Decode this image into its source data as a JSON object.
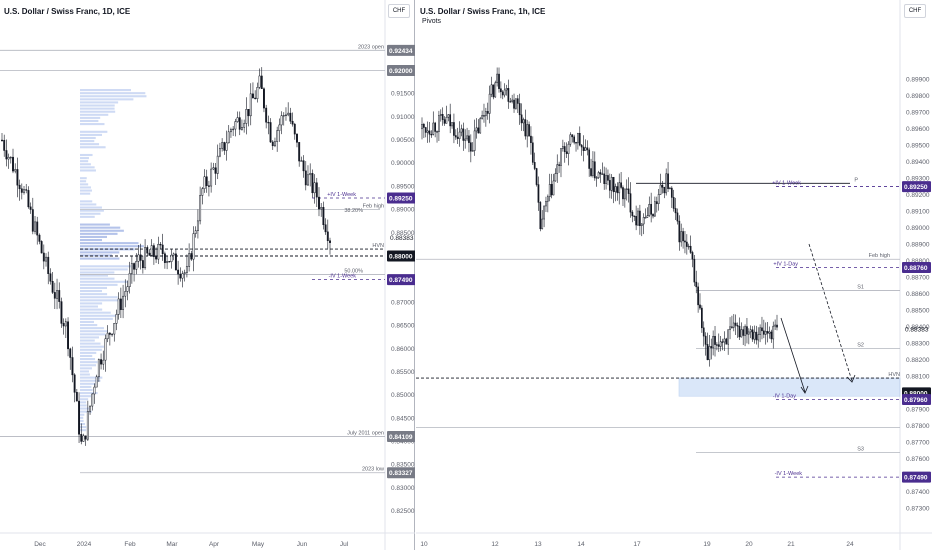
{
  "chart_data": [
    {
      "type": "candlestick",
      "title": "U.S. Dollar / Swiss Franc, 1D, ICE",
      "currency_button": "CHF",
      "ylim": [
        0.822,
        0.927
      ],
      "y_ticks": [
        "0.92500",
        "0.92000",
        "0.91500",
        "0.91000",
        "0.90500",
        "0.90000",
        "0.89500",
        "0.89000",
        "0.88500",
        "0.88000",
        "0.87500",
        "0.87000",
        "0.86500",
        "0.86000",
        "0.85500",
        "0.85000",
        "0.84500",
        "0.84000",
        "0.83500",
        "0.83000",
        "0.82500"
      ],
      "x_ticks": [
        "Dec",
        "2024",
        "Feb",
        "Mar",
        "Apr",
        "May",
        "Jun",
        "Jul"
      ],
      "price_path": [
        [
          0,
          0.905
        ],
        [
          20,
          0.895
        ],
        [
          45,
          0.877
        ],
        [
          65,
          0.864
        ],
        [
          80,
          0.838
        ],
        [
          95,
          0.856
        ],
        [
          115,
          0.868
        ],
        [
          135,
          0.879
        ],
        [
          160,
          0.881
        ],
        [
          185,
          0.876
        ],
        [
          200,
          0.894
        ],
        [
          215,
          0.9
        ],
        [
          230,
          0.908
        ],
        [
          245,
          0.911
        ],
        [
          258,
          0.917
        ],
        [
          270,
          0.905
        ],
        [
          285,
          0.912
        ],
        [
          300,
          0.899
        ],
        [
          315,
          0.893
        ],
        [
          328,
          0.884
        ]
      ],
      "levels": [
        {
          "label": "2023 open",
          "value": 0.92434,
          "tag": "0.92434",
          "style": "solid-gray",
          "tag_color": "#787b86"
        },
        {
          "label": "",
          "value": 0.92,
          "tag": "0.92000",
          "style": "solid-gray",
          "tag_color": "#787b86"
        },
        {
          "label": "+IV 1-Week",
          "value": 0.8925,
          "tag": "0.89250",
          "style": "dashed-purple",
          "tag_color": "#4a2d8f"
        },
        {
          "label": "Feb high",
          "value": 0.89,
          "tag": "",
          "style": "solid-gray",
          "tag_color": "#787b86"
        },
        {
          "label": "38.20%",
          "value": 0.889,
          "tag": "",
          "style": "none",
          "tag_color": "#787b86"
        },
        {
          "label": "HVN",
          "value": 0.8815,
          "tag": "",
          "style": "dashed-black",
          "tag_color": "#131722"
        },
        {
          "label": "",
          "value": 0.88,
          "tag": "0.88000",
          "style": "dashed-black",
          "tag_color": "#131722"
        },
        {
          "label": "50.00%",
          "value": 0.876,
          "tag": "",
          "style": "solid-gray",
          "tag_color": "#787b86"
        },
        {
          "label": "-IV 1-Week",
          "value": 0.8749,
          "tag": "0.87490",
          "style": "dashed-purple",
          "tag_color": "#4a2d8f"
        },
        {
          "label": "July 2011 open",
          "value": 0.84109,
          "tag": "0.84109",
          "style": "solid-gray",
          "tag_color": "#787b86"
        },
        {
          "label": "2023 low",
          "value": 0.83327,
          "tag": "0.83327",
          "style": "solid-gray",
          "tag_color": "#787b86"
        }
      ],
      "last_price": "0.88383",
      "volume_profile": [
        {
          "price": 0.914,
          "vol": 0.85
        },
        {
          "price": 0.91,
          "vol": 0.45
        },
        {
          "price": 0.905,
          "vol": 0.35
        },
        {
          "price": 0.9,
          "vol": 0.2
        },
        {
          "price": 0.895,
          "vol": 0.15
        },
        {
          "price": 0.89,
          "vol": 0.3
        },
        {
          "price": 0.885,
          "vol": 0.55
        },
        {
          "price": 0.881,
          "vol": 0.8
        },
        {
          "price": 0.876,
          "vol": 0.7
        },
        {
          "price": 0.872,
          "vol": 0.55
        },
        {
          "price": 0.868,
          "vol": 0.45
        },
        {
          "price": 0.864,
          "vol": 0.35
        },
        {
          "price": 0.86,
          "vol": 0.3
        },
        {
          "price": 0.856,
          "vol": 0.22
        },
        {
          "price": 0.852,
          "vol": 0.28
        },
        {
          "price": 0.848,
          "vol": 0.15
        },
        {
          "price": 0.844,
          "vol": 0.08
        }
      ]
    },
    {
      "type": "candlestick",
      "title": "U.S. Dollar / Swiss Franc, 1h, ICE",
      "subtitle": "Pivots",
      "currency_button": "CHF",
      "ylim": [
        0.872,
        0.9015
      ],
      "y_ticks": [
        "0.89900",
        "0.89800",
        "0.89700",
        "0.89600",
        "0.89500",
        "0.89400",
        "0.89300",
        "0.89200",
        "0.89100",
        "0.89000",
        "0.88900",
        "0.88800",
        "0.88700",
        "0.88600",
        "0.88500",
        "0.88400",
        "0.88300",
        "0.88200",
        "0.88100",
        "0.88000",
        "0.87900",
        "0.87800",
        "0.87700",
        "0.87600",
        "0.87500",
        "0.87400",
        "0.87300"
      ],
      "x_ticks": [
        "10",
        "12",
        "13",
        "14",
        "17",
        "19",
        "20",
        "21",
        "24"
      ],
      "price_path": [
        [
          0,
          0.896
        ],
        [
          25,
          0.8965
        ],
        [
          50,
          0.895
        ],
        [
          75,
          0.899
        ],
        [
          95,
          0.8975
        ],
        [
          110,
          0.895
        ],
        [
          118,
          0.89
        ],
        [
          125,
          0.8915
        ],
        [
          140,
          0.8945
        ],
        [
          155,
          0.8955
        ],
        [
          170,
          0.8935
        ],
        [
          190,
          0.8925
        ],
        [
          205,
          0.892
        ],
        [
          215,
          0.8905
        ],
        [
          230,
          0.891
        ],
        [
          245,
          0.893
        ],
        [
          255,
          0.89
        ],
        [
          270,
          0.888
        ],
        [
          285,
          0.882
        ],
        [
          292,
          0.883
        ],
        [
          310,
          0.8836
        ],
        [
          325,
          0.884
        ],
        [
          340,
          0.8836
        ],
        [
          355,
          0.8838
        ]
      ],
      "levels": [
        {
          "label": "P",
          "value": 0.8927,
          "tag": "",
          "style": "solid-black",
          "tag_color": "#131722"
        },
        {
          "label": "+IV 1-Week",
          "value": 0.8925,
          "tag": "0.89250",
          "style": "dashed-purple",
          "tag_color": "#4a2d8f"
        },
        {
          "label": "Feb high",
          "value": 0.8881,
          "tag": "",
          "style": "solid-gray",
          "tag_color": "#787b86"
        },
        {
          "label": "+IV 1-Day",
          "value": 0.8876,
          "tag": "0.88760",
          "style": "dashed-purple",
          "tag_color": "#4a2d8f"
        },
        {
          "label": "S1",
          "value": 0.8862,
          "tag": "",
          "style": "solid-gray",
          "tag_color": "#787b86"
        },
        {
          "label": "S2",
          "value": 0.8827,
          "tag": "",
          "style": "solid-gray",
          "tag_color": "#787b86"
        },
        {
          "label": "HVN",
          "value": 0.8809,
          "tag": "",
          "style": "dashed-black",
          "tag_color": "#131722"
        },
        {
          "label": "",
          "value": 0.88,
          "tag": "0.88000",
          "style": "none",
          "tag_color": "#131722"
        },
        {
          "label": "-IV 1-Day",
          "value": 0.8796,
          "tag": "0.87960",
          "style": "dashed-purple",
          "tag_color": "#4a2d8f"
        },
        {
          "label": "",
          "value": 0.8779,
          "tag": "",
          "style": "solid-gray",
          "tag_color": "#787b86"
        },
        {
          "label": "S3",
          "value": 0.8764,
          "tag": "",
          "style": "solid-gray",
          "tag_color": "#787b86"
        },
        {
          "label": "-IV 1-Week",
          "value": 0.8749,
          "tag": "0.87490",
          "style": "dashed-purple",
          "tag_color": "#4a2d8f"
        }
      ],
      "last_price": "0.88383",
      "zone": {
        "from": 0.8798,
        "to": 0.8809
      }
    }
  ]
}
